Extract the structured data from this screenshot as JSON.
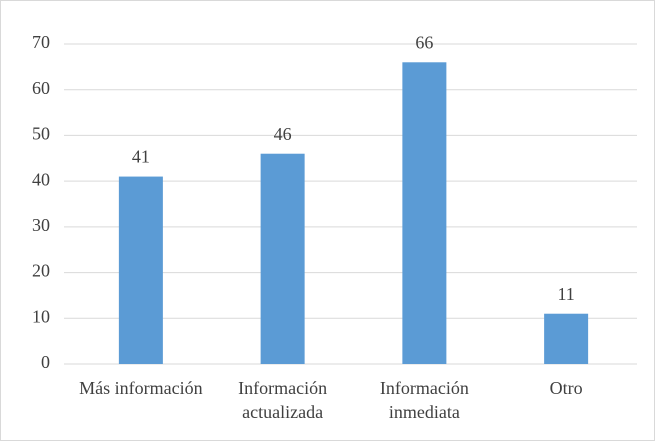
{
  "chart_data": {
    "type": "bar",
    "categories": [
      "Más información",
      "Información actualizada",
      "Información inmediata",
      "Otro"
    ],
    "values": [
      41,
      46,
      66,
      11
    ],
    "color": "#5b9bd5",
    "ylim": [
      0,
      70
    ],
    "yticks": [
      0,
      10,
      20,
      30,
      40,
      50,
      60,
      70
    ],
    "grid": true
  }
}
